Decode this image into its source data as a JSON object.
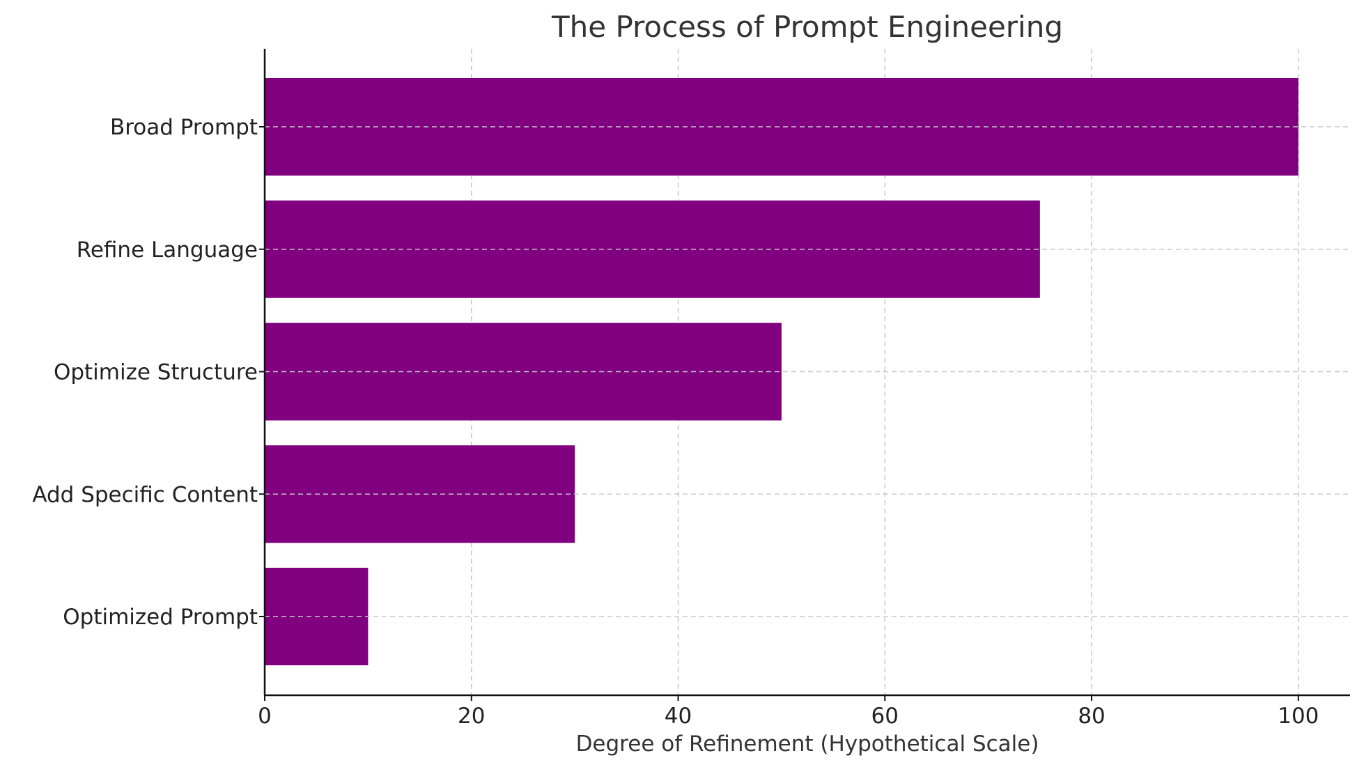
{
  "chart_data": {
    "type": "bar",
    "orientation": "horizontal",
    "title": "The Process of Prompt Engineering",
    "xlabel": "Degree of Refinement (Hypothetical Scale)",
    "ylabel": "",
    "categories": [
      "Broad Prompt",
      "Refine Language",
      "Optimize Structure",
      "Add Specific Content",
      "Optimized Prompt"
    ],
    "values": [
      100,
      75,
      50,
      30,
      10
    ],
    "xlim": [
      0,
      105
    ],
    "xticks": [
      0,
      20,
      40,
      60,
      80,
      100
    ],
    "bar_color": "#800080",
    "grid": true,
    "grid_style": "dashed"
  }
}
